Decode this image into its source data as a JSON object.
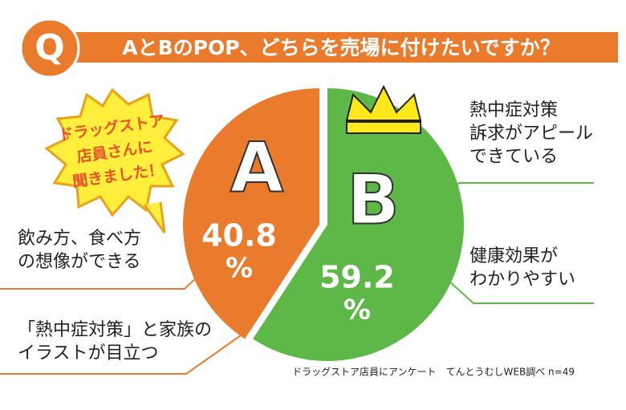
{
  "chart_data": {
    "type": "pie",
    "badge": "Q",
    "title": "AとBのPOP、どちらを売場に付けたいですか？",
    "categories": [
      "A",
      "B"
    ],
    "values": [
      40.8,
      59.2
    ],
    "value_unit": "%",
    "colors": [
      "#ea7a2c",
      "#5db847"
    ],
    "callout": [
      "ドラッグストア",
      "店員さんに",
      "聞きました！"
    ],
    "reasons": [
      [
        [
          "飲み方、食べ方",
          "の想像ができる"
        ],
        [
          "「熱中症対策」と家族の",
          "イラストが目立つ"
        ]
      ],
      [
        [
          "熱中症対策",
          "訴求がアピール",
          "できている"
        ],
        [
          "健康効果が",
          "わかりやすい"
        ]
      ]
    ],
    "source": "ドラッグストア店員にアンケート　てんとうむしWEB調べ n=49"
  }
}
